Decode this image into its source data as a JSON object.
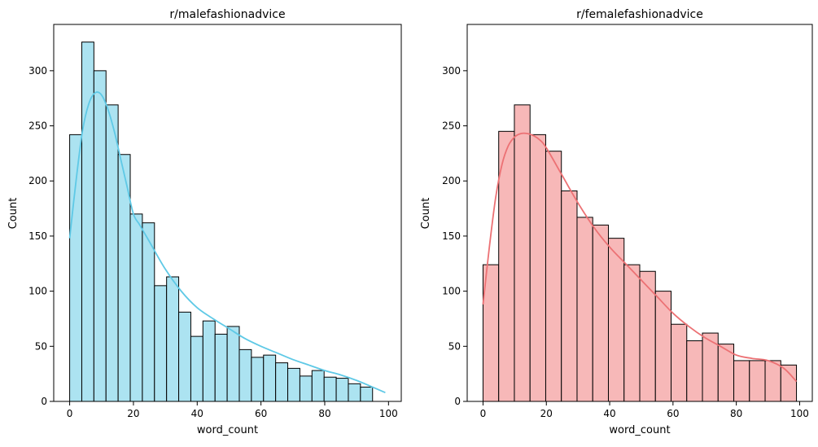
{
  "chart_data": [
    {
      "type": "bar",
      "title": "r/malefashionadvice",
      "xlabel": "word_count",
      "ylabel": "Count",
      "xlim": [
        -5,
        104
      ],
      "ylim": [
        0,
        342
      ],
      "xticks": [
        "0",
        "20",
        "40",
        "60",
        "80",
        "100"
      ],
      "yticks": [
        "0",
        "50",
        "100",
        "150",
        "200",
        "250",
        "300"
      ],
      "grid": false,
      "color_fill": "#ace3f1",
      "color_kde": "#5fc9e6",
      "bins": [
        {
          "x0": 0,
          "x1": 3.8,
          "count": 242
        },
        {
          "x0": 3.8,
          "x1": 7.6,
          "count": 326
        },
        {
          "x0": 7.6,
          "x1": 11.4,
          "count": 300
        },
        {
          "x0": 11.4,
          "x1": 15.2,
          "count": 269
        },
        {
          "x0": 15.2,
          "x1": 19.0,
          "count": 224
        },
        {
          "x0": 19.0,
          "x1": 22.8,
          "count": 170
        },
        {
          "x0": 22.8,
          "x1": 26.6,
          "count": 162
        },
        {
          "x0": 26.6,
          "x1": 30.4,
          "count": 105
        },
        {
          "x0": 30.4,
          "x1": 34.2,
          "count": 113
        },
        {
          "x0": 34.2,
          "x1": 38.0,
          "count": 81
        },
        {
          "x0": 38.0,
          "x1": 41.8,
          "count": 59
        },
        {
          "x0": 41.8,
          "x1": 45.6,
          "count": 73
        },
        {
          "x0": 45.6,
          "x1": 49.4,
          "count": 61
        },
        {
          "x0": 49.4,
          "x1": 53.2,
          "count": 68
        },
        {
          "x0": 53.2,
          "x1": 57.0,
          "count": 47
        },
        {
          "x0": 57.0,
          "x1": 60.8,
          "count": 40
        },
        {
          "x0": 60.8,
          "x1": 64.6,
          "count": 42
        },
        {
          "x0": 64.6,
          "x1": 68.4,
          "count": 35
        },
        {
          "x0": 68.4,
          "x1": 72.2,
          "count": 30
        },
        {
          "x0": 72.2,
          "x1": 76.0,
          "count": 23
        },
        {
          "x0": 76.0,
          "x1": 79.8,
          "count": 28
        },
        {
          "x0": 79.8,
          "x1": 83.6,
          "count": 22
        },
        {
          "x0": 83.6,
          "x1": 87.4,
          "count": 21
        },
        {
          "x0": 87.4,
          "x1": 91.2,
          "count": 16
        },
        {
          "x0": 91.2,
          "x1": 95.0,
          "count": 13
        }
      ],
      "kde": {
        "x": [
          0,
          2,
          4,
          6,
          8,
          10,
          12,
          14,
          16,
          18,
          20,
          22,
          25,
          30,
          35,
          40,
          45,
          50,
          55,
          60,
          65,
          70,
          75,
          80,
          85,
          90,
          95,
          99
        ],
        "y": [
          148,
          200,
          245,
          270,
          280,
          278,
          265,
          245,
          220,
          195,
          170,
          160,
          145,
          120,
          100,
          85,
          75,
          66,
          57,
          50,
          44,
          38,
          33,
          28,
          24,
          19,
          13,
          8
        ]
      }
    },
    {
      "type": "bar",
      "title": "r/femalefashionadvice",
      "xlabel": "word_count",
      "ylabel": "Count",
      "xlim": [
        -5,
        104
      ],
      "ylim": [
        0,
        342
      ],
      "xticks": [
        "0",
        "20",
        "40",
        "60",
        "80",
        "100"
      ],
      "yticks": [
        "0",
        "50",
        "100",
        "150",
        "200",
        "250",
        "300"
      ],
      "grid": false,
      "color_fill": "#f7b8b8",
      "color_kde": "#ec7174",
      "bins": [
        {
          "x0": 0,
          "x1": 4.95,
          "count": 124
        },
        {
          "x0": 4.95,
          "x1": 9.9,
          "count": 245
        },
        {
          "x0": 9.9,
          "x1": 14.85,
          "count": 269
        },
        {
          "x0": 14.85,
          "x1": 19.8,
          "count": 242
        },
        {
          "x0": 19.8,
          "x1": 24.75,
          "count": 227
        },
        {
          "x0": 24.75,
          "x1": 29.7,
          "count": 191
        },
        {
          "x0": 29.7,
          "x1": 34.65,
          "count": 167
        },
        {
          "x0": 34.65,
          "x1": 39.6,
          "count": 160
        },
        {
          "x0": 39.6,
          "x1": 44.55,
          "count": 148
        },
        {
          "x0": 44.55,
          "x1": 49.5,
          "count": 124
        },
        {
          "x0": 49.5,
          "x1": 54.45,
          "count": 118
        },
        {
          "x0": 54.45,
          "x1": 59.4,
          "count": 100
        },
        {
          "x0": 59.4,
          "x1": 64.35,
          "count": 70
        },
        {
          "x0": 64.35,
          "x1": 69.3,
          "count": 55
        },
        {
          "x0": 69.3,
          "x1": 74.25,
          "count": 62
        },
        {
          "x0": 74.25,
          "x1": 79.2,
          "count": 52
        },
        {
          "x0": 79.2,
          "x1": 84.15,
          "count": 37
        },
        {
          "x0": 84.15,
          "x1": 89.1,
          "count": 37
        },
        {
          "x0": 89.1,
          "x1": 94.05,
          "count": 37
        },
        {
          "x0": 94.05,
          "x1": 99.0,
          "count": 33
        }
      ],
      "kde": {
        "x": [
          0,
          2,
          4,
          6,
          8,
          10,
          12,
          14,
          16,
          18,
          20,
          25,
          30,
          35,
          40,
          45,
          50,
          55,
          60,
          65,
          70,
          75,
          80,
          85,
          90,
          95,
          99
        ],
        "y": [
          88,
          140,
          185,
          215,
          232,
          240,
          243,
          243,
          241,
          237,
          230,
          205,
          180,
          158,
          140,
          125,
          110,
          95,
          80,
          68,
          58,
          50,
          42,
          39,
          37,
          30,
          18
        ]
      }
    }
  ]
}
